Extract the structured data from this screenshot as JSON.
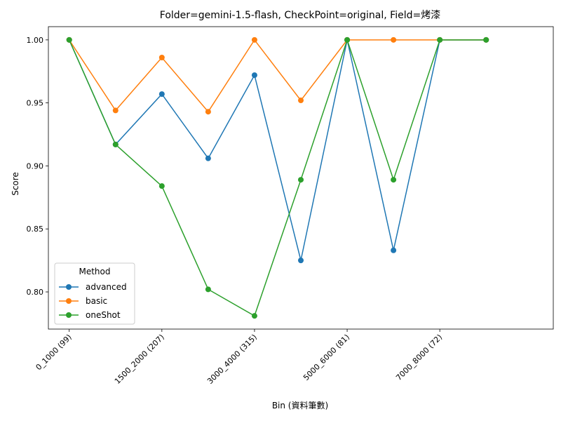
{
  "chart_data": {
    "type": "line",
    "title": "Folder=gemini-1.5-flash, CheckPoint=original, Field=烤漆",
    "xlabel": "Bin (資料筆數)",
    "ylabel": "Score",
    "x_tick_labels": [
      "0_1000 (99)",
      "1500_2000 (207)",
      "3000_4000 (315)",
      "5000_6000 (81)",
      "7000_8000 (72)"
    ],
    "x_tick_positions": [
      0,
      2,
      4,
      6,
      8
    ],
    "x_count": 10,
    "ylim": [
      0.7705,
      1.0105
    ],
    "y_ticks": [
      0.8,
      0.85,
      0.9,
      0.95,
      1.0
    ],
    "y_tick_labels": [
      "0.80",
      "0.85",
      "0.90",
      "0.95",
      "1.00"
    ],
    "grid": false,
    "legend": {
      "title": "Method",
      "position": "lower-left"
    },
    "series": [
      {
        "name": "advanced",
        "color": "#1f77b4",
        "values": [
          1.0,
          0.917,
          0.957,
          0.906,
          0.972,
          0.825,
          1.0,
          0.833,
          1.0,
          1.0
        ]
      },
      {
        "name": "basic",
        "color": "#ff7f0e",
        "values": [
          1.0,
          0.944,
          0.986,
          0.943,
          1.0,
          0.952,
          1.0,
          1.0,
          1.0,
          1.0
        ]
      },
      {
        "name": "oneShot",
        "color": "#2ca02c",
        "values": [
          1.0,
          0.917,
          0.884,
          0.802,
          0.781,
          0.889,
          1.0,
          0.889,
          1.0,
          1.0
        ]
      }
    ]
  }
}
